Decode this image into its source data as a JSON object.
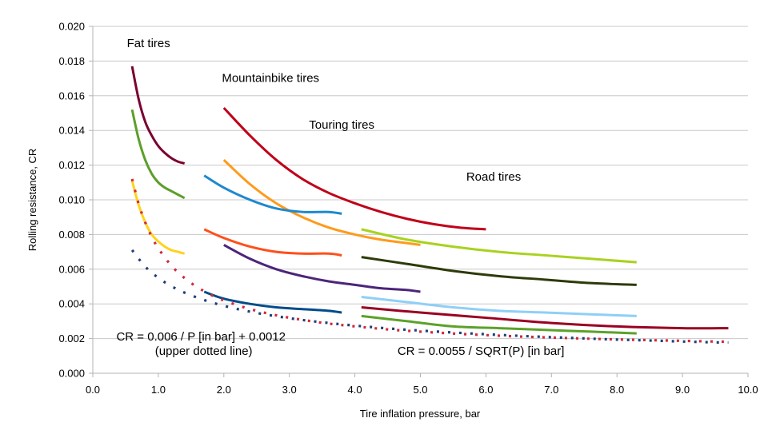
{
  "chart_data": {
    "type": "line",
    "title": "",
    "xlabel": "Tire inflation pressure, bar",
    "ylabel": "Rolling resistance, CR",
    "xlim": [
      0,
      10
    ],
    "ylim": [
      0,
      0.02
    ],
    "x_ticks": [
      "0.0",
      "1.0",
      "2.0",
      "3.0",
      "4.0",
      "5.0",
      "6.0",
      "7.0",
      "8.0",
      "9.0",
      "10.0"
    ],
    "y_ticks": [
      "0.000",
      "0.002",
      "0.004",
      "0.006",
      "0.008",
      "0.010",
      "0.012",
      "0.014",
      "0.016",
      "0.018",
      "0.020"
    ],
    "grid": "horizontal",
    "legend": "none",
    "series": [
      {
        "group": "fat",
        "color": "#7b0030",
        "x": [
          0.6,
          0.7,
          0.8,
          0.9,
          1.0,
          1.1,
          1.2,
          1.3,
          1.4
        ],
        "y": [
          0.0177,
          0.0158,
          0.0145,
          0.0137,
          0.0131,
          0.0127,
          0.0124,
          0.0122,
          0.0121
        ]
      },
      {
        "group": "fat",
        "color": "#5d9e2a",
        "x": [
          0.6,
          0.7,
          0.8,
          0.9,
          1.0,
          1.1,
          1.2,
          1.3,
          1.4
        ],
        "y": [
          0.0152,
          0.0135,
          0.0123,
          0.0115,
          0.011,
          0.0107,
          0.0105,
          0.0103,
          0.0101
        ]
      },
      {
        "group": "fat",
        "color": "#ffd21f",
        "x": [
          0.6,
          0.7,
          0.8,
          0.9,
          1.0,
          1.1,
          1.2,
          1.3,
          1.4
        ],
        "y": [
          0.0111,
          0.0097,
          0.0087,
          0.008,
          0.0076,
          0.0073,
          0.0071,
          0.007,
          0.0069
        ]
      },
      {
        "group": "mtb",
        "color": "#c0001a",
        "x": [
          2.0,
          2.4,
          2.8,
          3.2,
          3.6,
          4.0,
          4.4,
          4.8,
          5.2,
          5.6,
          6.0
        ],
        "y": [
          0.0153,
          0.0137,
          0.0123,
          0.0112,
          0.0104,
          0.0098,
          0.0093,
          0.0089,
          0.0086,
          0.0084,
          0.0083
        ]
      },
      {
        "group": "mtb",
        "color": "#ff9a1b",
        "x": [
          2.0,
          2.4,
          2.8,
          3.2,
          3.6,
          4.0,
          4.4,
          4.8,
          5.0
        ],
        "y": [
          0.0123,
          0.0109,
          0.0098,
          0.009,
          0.0084,
          0.008,
          0.0077,
          0.0075,
          0.0074
        ]
      },
      {
        "group": "touring",
        "color": "#1e88cf",
        "x": [
          1.7,
          2.0,
          2.4,
          2.8,
          3.2,
          3.6,
          3.8
        ],
        "y": [
          0.0114,
          0.0107,
          0.01,
          0.0095,
          0.0093,
          0.0093,
          0.0092
        ]
      },
      {
        "group": "touring",
        "color": "#ff4f1a",
        "x": [
          1.7,
          2.0,
          2.4,
          2.8,
          3.2,
          3.6,
          3.8
        ],
        "y": [
          0.0083,
          0.0078,
          0.0073,
          0.007,
          0.0069,
          0.0069,
          0.0068
        ]
      },
      {
        "group": "touring",
        "color": "#4c257a",
        "x": [
          2.0,
          2.4,
          2.8,
          3.2,
          3.6,
          4.0,
          4.4,
          4.8,
          5.0
        ],
        "y": [
          0.0074,
          0.0066,
          0.006,
          0.0056,
          0.0053,
          0.0051,
          0.0049,
          0.0048,
          0.0047
        ]
      },
      {
        "group": "touring",
        "color": "#004c8a",
        "x": [
          1.7,
          2.0,
          2.4,
          2.8,
          3.2,
          3.6,
          3.8
        ],
        "y": [
          0.0047,
          0.0043,
          0.004,
          0.0038,
          0.0037,
          0.0036,
          0.0035
        ]
      },
      {
        "group": "road",
        "color": "#a8d21f",
        "x": [
          4.1,
          4.8,
          5.5,
          6.2,
          6.9,
          7.6,
          8.3
        ],
        "y": [
          0.0083,
          0.0077,
          0.0073,
          0.007,
          0.0068,
          0.0066,
          0.0064
        ]
      },
      {
        "group": "road",
        "color": "#2c3b08",
        "x": [
          4.1,
          4.8,
          5.5,
          6.2,
          6.9,
          7.6,
          8.3
        ],
        "y": [
          0.0067,
          0.0063,
          0.0059,
          0.0056,
          0.0054,
          0.0052,
          0.0051
        ]
      },
      {
        "group": "road",
        "color": "#8fcff7",
        "x": [
          4.1,
          4.8,
          5.5,
          6.2,
          6.9,
          7.6,
          8.3
        ],
        "y": [
          0.0044,
          0.0041,
          0.0038,
          0.0036,
          0.0035,
          0.0034,
          0.0033
        ]
      },
      {
        "group": "road",
        "color": "#9a0021",
        "x": [
          4.1,
          5.0,
          6.0,
          7.0,
          8.0,
          9.0,
          9.7
        ],
        "y": [
          0.0038,
          0.0035,
          0.0032,
          0.0029,
          0.0027,
          0.0026,
          0.0026
        ]
      },
      {
        "group": "road",
        "color": "#5ba22a",
        "x": [
          4.1,
          4.8,
          5.5,
          6.2,
          6.9,
          7.6,
          8.3
        ],
        "y": [
          0.0033,
          0.003,
          0.0027,
          0.0026,
          0.0025,
          0.0024,
          0.0023
        ]
      }
    ],
    "dotted_series": [
      {
        "formula": "0.006/P+0.0012",
        "color": "#d2283c",
        "x": [
          0.6,
          0.7,
          0.8,
          0.9,
          1.0,
          1.2,
          1.4,
          1.6,
          1.8,
          2.0,
          2.3,
          2.6,
          2.9,
          3.2,
          3.5,
          3.8,
          4.2,
          4.6,
          5.0,
          5.5,
          6.0,
          6.5,
          7.0,
          7.5,
          8.0,
          8.5,
          9.0,
          9.5,
          9.7
        ],
        "y": [
          0.0112,
          0.00977,
          0.0087,
          0.00787,
          0.0072,
          0.0062,
          0.00549,
          0.00495,
          0.00453,
          0.0042,
          0.00381,
          0.00351,
          0.00327,
          0.00308,
          0.00291,
          0.00278,
          0.00263,
          0.0025,
          0.0024,
          0.00229,
          0.0022,
          0.00212,
          0.00206,
          0.002,
          0.00195,
          0.00191,
          0.00187,
          0.00183,
          0.00182
        ]
      },
      {
        "formula": "0.0055/SQRT(P)",
        "color": "#1e3f7a",
        "x": [
          0.6,
          0.8,
          1.0,
          1.2,
          1.4,
          1.7,
          2.0,
          2.3,
          2.6,
          2.9,
          3.2,
          3.5,
          3.8,
          4.2,
          4.6,
          5.0,
          5.5,
          6.0,
          6.5,
          7.0,
          7.5,
          8.0,
          8.5,
          9.0,
          9.5,
          9.7
        ],
        "y": [
          0.0071,
          0.00615,
          0.0055,
          0.00502,
          0.00465,
          0.00422,
          0.00389,
          0.00363,
          0.00341,
          0.00323,
          0.00307,
          0.00294,
          0.00282,
          0.00268,
          0.00256,
          0.00246,
          0.00235,
          0.00225,
          0.00216,
          0.00208,
          0.00201,
          0.00194,
          0.00189,
          0.00183,
          0.00178,
          0.00177
        ]
      }
    ],
    "annotations": [
      {
        "text": "Fat tires",
        "x": 0.52,
        "y": 0.0188
      },
      {
        "text": "Mountainbike tires",
        "x": 1.97,
        "y": 0.0168
      },
      {
        "text": "Touring tires",
        "x": 3.3,
        "y": 0.0141
      },
      {
        "text": "Road tires",
        "x": 5.7,
        "y": 0.0111
      },
      {
        "text": "CR = 0.006 / P [in bar] + 0.0012",
        "x": 0.36,
        "y": 0.0019
      },
      {
        "text": "(upper dotted line)",
        "x": 0.95,
        "y": 0.00105
      },
      {
        "text": "CR = 0.0055 / SQRT(P) [in bar]",
        "x": 4.65,
        "y": 0.00105
      }
    ]
  }
}
